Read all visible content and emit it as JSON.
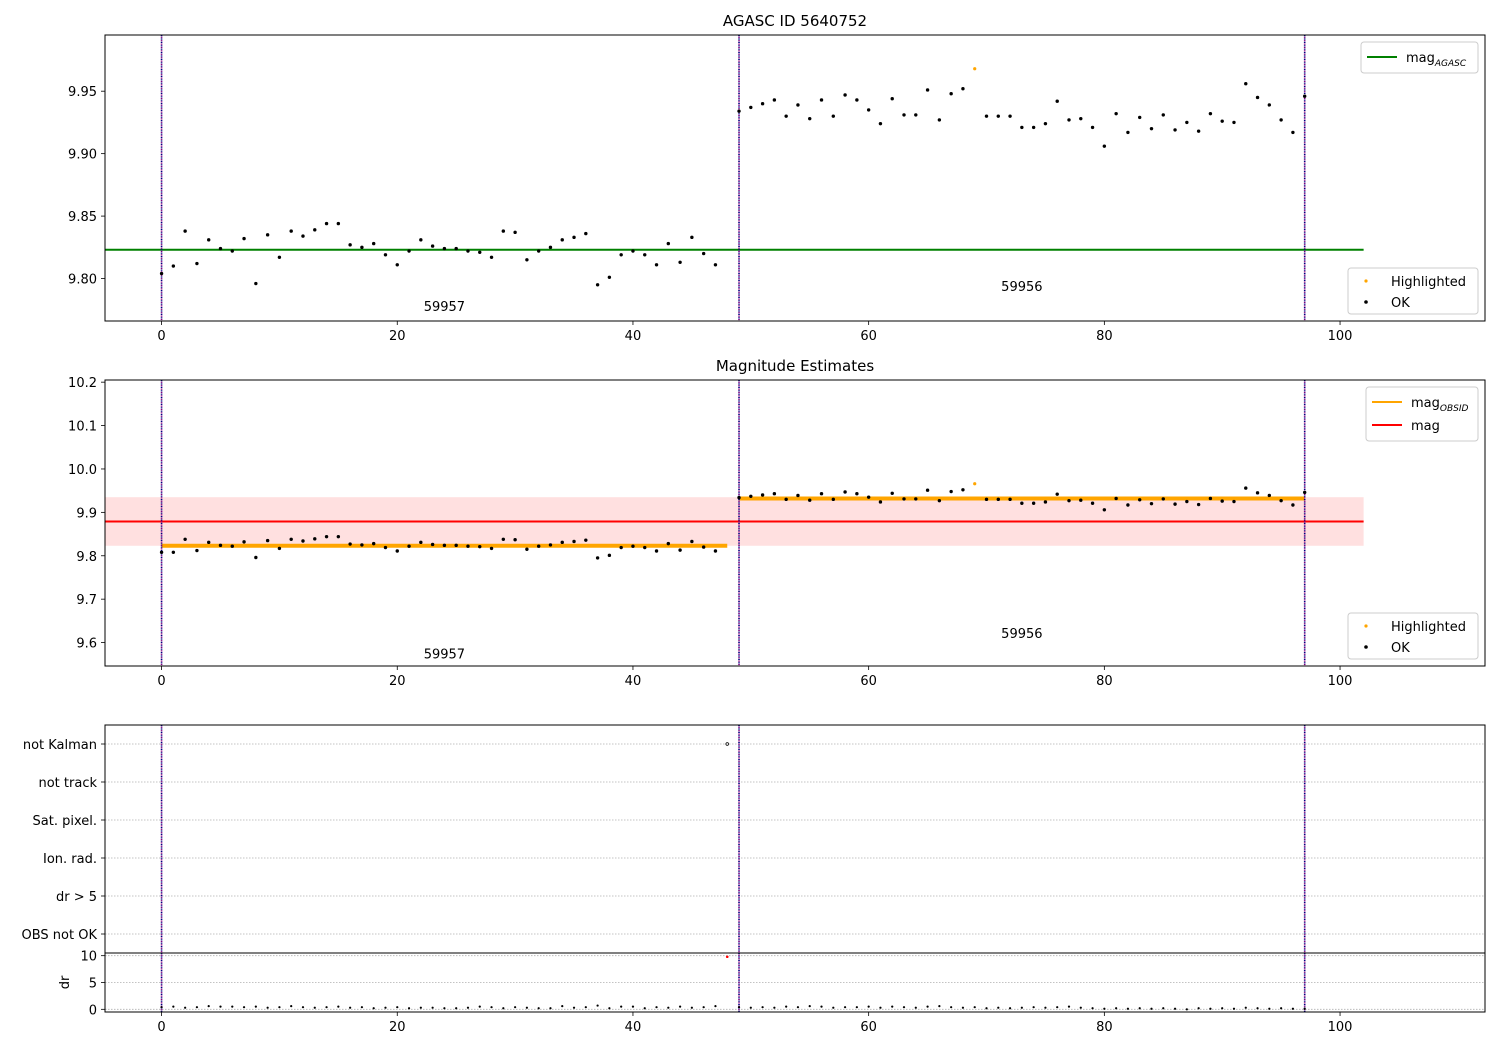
{
  "chart_data": [
    {
      "type": "scatter",
      "title": "AGASC ID 5640752",
      "xlabel": "",
      "ylabel": "",
      "xlim": [
        -4.8,
        112.3
      ],
      "ylim": [
        9.766,
        9.995
      ],
      "xticks": [
        0,
        20,
        40,
        60,
        80,
        100
      ],
      "yticks": [
        9.8,
        9.85,
        9.9,
        9.95
      ],
      "ytick_labels": [
        "9.80",
        "9.85",
        "9.90",
        "9.95"
      ],
      "vlines": [
        0,
        49,
        97
      ],
      "segment_labels": [
        {
          "x": 24,
          "y": 9.774,
          "text": "59957"
        },
        {
          "x": 73,
          "y": 9.79,
          "text": "59956"
        }
      ],
      "hlines": [
        {
          "name": "mag_AGASC",
          "y": 9.823,
          "x_range": [
            -4.8,
            102
          ],
          "color": "#008000"
        }
      ],
      "legend_lines": [
        {
          "label": "mag",
          "sub": "AGASC",
          "color": "#008000"
        }
      ],
      "legend_points": [
        {
          "label": "Highlighted",
          "color": "#ffa500"
        },
        {
          "label": "OK",
          "color": "#000000"
        }
      ],
      "highlighted": {
        "x": [
          69
        ],
        "y": [
          9.968
        ]
      },
      "ok": {
        "x": [
          0,
          1,
          2,
          3,
          4,
          5,
          6,
          7,
          8,
          9,
          10,
          11,
          12,
          13,
          14,
          15,
          16,
          17,
          18,
          19,
          20,
          21,
          22,
          23,
          24,
          25,
          26,
          27,
          28,
          29,
          30,
          31,
          32,
          33,
          34,
          35,
          36,
          37,
          38,
          39,
          40,
          41,
          42,
          43,
          44,
          45,
          46,
          47,
          49,
          50,
          51,
          52,
          53,
          54,
          55,
          56,
          57,
          58,
          59,
          60,
          61,
          62,
          63,
          64,
          65,
          66,
          67,
          68,
          70,
          71,
          72,
          73,
          74,
          75,
          76,
          77,
          78,
          79,
          80,
          81,
          82,
          83,
          84,
          85,
          86,
          87,
          88,
          89,
          90,
          91,
          92,
          93,
          94,
          95,
          96,
          97
        ],
        "y": [
          9.804,
          9.81,
          9.838,
          9.812,
          9.831,
          9.824,
          9.822,
          9.832,
          9.796,
          9.835,
          9.817,
          9.838,
          9.834,
          9.839,
          9.844,
          9.844,
          9.827,
          9.825,
          9.828,
          9.819,
          9.811,
          9.822,
          9.831,
          9.826,
          9.824,
          9.824,
          9.822,
          9.821,
          9.817,
          9.838,
          9.837,
          9.815,
          9.822,
          9.825,
          9.831,
          9.833,
          9.836,
          9.795,
          9.801,
          9.819,
          9.822,
          9.819,
          9.811,
          9.828,
          9.813,
          9.833,
          9.82,
          9.811,
          9.934,
          9.937,
          9.94,
          9.943,
          9.93,
          9.939,
          9.928,
          9.943,
          9.93,
          9.947,
          9.943,
          9.935,
          9.924,
          9.944,
          9.931,
          9.931,
          9.951,
          9.927,
          9.948,
          9.952,
          9.93,
          9.93,
          9.93,
          9.921,
          9.921,
          9.924,
          9.942,
          9.927,
          9.928,
          9.921,
          9.906,
          9.932,
          9.917,
          9.929,
          9.92,
          9.931,
          9.919,
          9.925,
          9.918,
          9.932,
          9.926,
          9.925,
          9.956,
          9.945,
          9.939,
          9.927,
          9.917,
          9.946
        ]
      }
    },
    {
      "type": "scatter",
      "title": "Magnitude Estimates",
      "xlabel": "",
      "ylabel": "",
      "xlim": [
        -4.8,
        112.3
      ],
      "ylim": [
        9.546,
        10.205
      ],
      "xticks": [
        0,
        20,
        40,
        60,
        80,
        100
      ],
      "yticks": [
        9.6,
        9.7,
        9.8,
        9.9,
        10.0,
        10.1,
        10.2
      ],
      "ytick_labels": [
        "9.6",
        "9.7",
        "9.8",
        "9.9",
        "10.0",
        "10.1",
        "10.2"
      ],
      "vlines": [
        0,
        49,
        97
      ],
      "segment_labels": [
        {
          "x": 24,
          "y": 9.563,
          "text": "59957"
        },
        {
          "x": 73,
          "y": 9.61,
          "text": "59956"
        }
      ],
      "band": {
        "y_low": 9.823,
        "y_high": 9.935,
        "x_range": [
          -4.8,
          102
        ],
        "color": "#ff0000"
      },
      "hlines": [
        {
          "name": "mag",
          "y": 9.879,
          "x_range": [
            -4.8,
            102
          ],
          "color": "#ff0000"
        }
      ],
      "segments": [
        {
          "name": "mag_OBSID",
          "x_range": [
            0,
            48
          ],
          "y": 9.823,
          "color": "#ffa500"
        },
        {
          "name": "mag_OBSID",
          "x_range": [
            49,
            97
          ],
          "y": 9.932,
          "color": "#ffa500"
        }
      ],
      "legend_lines": [
        {
          "label": "mag",
          "sub": "OBSID",
          "color": "#ffa500"
        },
        {
          "label": "mag",
          "sub": "",
          "color": "#ff0000"
        }
      ],
      "legend_points": [
        {
          "label": "Highlighted",
          "color": "#ffa500"
        },
        {
          "label": "OK",
          "color": "#000000"
        }
      ],
      "highlighted": {
        "x": [
          69
        ],
        "y": [
          9.966
        ]
      },
      "ok": {
        "x": [
          0,
          1,
          2,
          3,
          4,
          5,
          6,
          7,
          8,
          9,
          10,
          11,
          12,
          13,
          14,
          15,
          16,
          17,
          18,
          19,
          20,
          21,
          22,
          23,
          24,
          25,
          26,
          27,
          28,
          29,
          30,
          31,
          32,
          33,
          34,
          35,
          36,
          37,
          38,
          39,
          40,
          41,
          42,
          43,
          44,
          45,
          46,
          47,
          49,
          50,
          51,
          52,
          53,
          54,
          55,
          56,
          57,
          58,
          59,
          60,
          61,
          62,
          63,
          64,
          65,
          66,
          67,
          68,
          70,
          71,
          72,
          73,
          74,
          75,
          76,
          77,
          78,
          79,
          80,
          81,
          82,
          83,
          84,
          85,
          86,
          87,
          88,
          89,
          90,
          91,
          92,
          93,
          94,
          95,
          96,
          97
        ],
        "y": [
          9.808,
          9.808,
          9.838,
          9.812,
          9.831,
          9.824,
          9.822,
          9.832,
          9.796,
          9.835,
          9.817,
          9.838,
          9.834,
          9.839,
          9.844,
          9.844,
          9.827,
          9.825,
          9.828,
          9.819,
          9.811,
          9.822,
          9.831,
          9.826,
          9.824,
          9.824,
          9.822,
          9.821,
          9.817,
          9.838,
          9.837,
          9.815,
          9.822,
          9.825,
          9.831,
          9.833,
          9.836,
          9.795,
          9.801,
          9.819,
          9.822,
          9.819,
          9.811,
          9.828,
          9.813,
          9.833,
          9.82,
          9.811,
          9.934,
          9.937,
          9.94,
          9.943,
          9.93,
          9.939,
          9.928,
          9.943,
          9.93,
          9.947,
          9.943,
          9.935,
          9.924,
          9.944,
          9.931,
          9.931,
          9.951,
          9.927,
          9.948,
          9.952,
          9.93,
          9.93,
          9.93,
          9.921,
          9.921,
          9.924,
          9.942,
          9.927,
          9.928,
          9.921,
          9.906,
          9.932,
          9.917,
          9.929,
          9.92,
          9.931,
          9.919,
          9.925,
          9.918,
          9.932,
          9.926,
          9.925,
          9.956,
          9.945,
          9.939,
          9.927,
          9.917,
          9.946
        ]
      }
    },
    {
      "type": "scatter",
      "title": "",
      "xlabel": "",
      "ylabel": "",
      "xlim": [
        -4.8,
        112.3
      ],
      "ylim": [
        0.5,
        6.5
      ],
      "xticks": [
        0,
        20,
        40,
        60,
        80,
        100
      ],
      "categories": [
        "OBS not OK",
        "dr > 5",
        "Ion. rad.",
        "Sat. pixel.",
        "not track",
        "not Kalman"
      ],
      "vlines": [
        0,
        49,
        97
      ],
      "flags": [
        {
          "category": "not Kalman",
          "x": 48
        }
      ]
    },
    {
      "type": "scatter",
      "title": "",
      "xlabel": "",
      "ylabel": "dr",
      "xlim": [
        -4.8,
        112.3
      ],
      "ylim": [
        -0.5,
        10.5
      ],
      "xticks": [
        0,
        20,
        40,
        60,
        80,
        100
      ],
      "xtick_labels": [
        "0",
        "20",
        "40",
        "60",
        "80",
        "100"
      ],
      "yticks": [
        0,
        5,
        10
      ],
      "ytick_labels": [
        "0",
        "5",
        "10"
      ],
      "vlines": [
        0,
        49,
        97
      ],
      "highlighted": {
        "x": [
          48
        ],
        "y": [
          9.8
        ]
      },
      "ok": {
        "x": [
          0,
          1,
          2,
          3,
          4,
          5,
          6,
          7,
          8,
          9,
          10,
          11,
          12,
          13,
          14,
          15,
          16,
          17,
          18,
          19,
          20,
          21,
          22,
          23,
          24,
          25,
          26,
          27,
          28,
          29,
          30,
          31,
          32,
          33,
          34,
          35,
          36,
          37,
          38,
          39,
          40,
          41,
          42,
          43,
          44,
          45,
          46,
          47,
          49,
          50,
          51,
          52,
          53,
          54,
          55,
          56,
          57,
          58,
          59,
          60,
          61,
          62,
          63,
          64,
          65,
          66,
          67,
          68,
          69,
          70,
          71,
          72,
          73,
          74,
          75,
          76,
          77,
          78,
          79,
          80,
          81,
          82,
          83,
          84,
          85,
          86,
          87,
          88,
          89,
          90,
          91,
          92,
          93,
          94,
          95,
          96,
          97
        ],
        "y": [
          0.4,
          0.5,
          0.3,
          0.4,
          0.6,
          0.5,
          0.5,
          0.4,
          0.5,
          0.3,
          0.4,
          0.6,
          0.4,
          0.3,
          0.4,
          0.5,
          0.3,
          0.4,
          0.2,
          0.3,
          0.4,
          0.2,
          0.3,
          0.3,
          0.2,
          0.2,
          0.3,
          0.5,
          0.4,
          0.2,
          0.4,
          0.3,
          0.2,
          0.2,
          0.6,
          0.3,
          0.4,
          0.7,
          0.2,
          0.5,
          0.5,
          0.2,
          0.4,
          0.3,
          0.5,
          0.3,
          0.4,
          0.6,
          0.4,
          0.3,
          0.4,
          0.3,
          0.5,
          0.4,
          0.6,
          0.5,
          0.3,
          0.4,
          0.4,
          0.5,
          0.3,
          0.5,
          0.4,
          0.3,
          0.5,
          0.6,
          0.4,
          0.3,
          0.4,
          0.2,
          0.3,
          0.2,
          0.3,
          0.4,
          0.3,
          0.4,
          0.5,
          0.3,
          0.2,
          0.1,
          0.2,
          0.1,
          0.2,
          0.1,
          0.2,
          0.1,
          0.0,
          0.2,
          0.1,
          0.2,
          0.1,
          0.3,
          0.2,
          0.1,
          0.2,
          0.1,
          0.1
        ]
      }
    }
  ]
}
